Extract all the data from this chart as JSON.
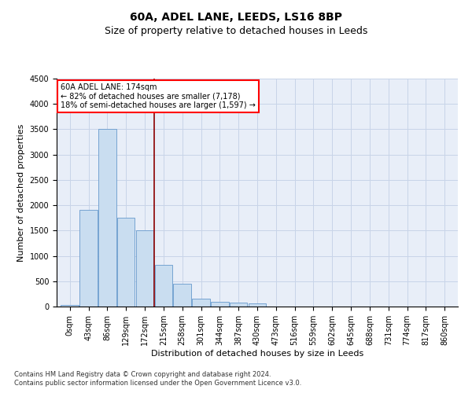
{
  "title": "60A, ADEL LANE, LEEDS, LS16 8BP",
  "subtitle": "Size of property relative to detached houses in Leeds",
  "xlabel": "Distribution of detached houses by size in Leeds",
  "ylabel": "Number of detached properties",
  "footnote1": "Contains HM Land Registry data © Crown copyright and database right 2024.",
  "footnote2": "Contains public sector information licensed under the Open Government Licence v3.0.",
  "annotation_line1": "60A ADEL LANE: 174sqm",
  "annotation_line2": "← 82% of detached houses are smaller (7,178)",
  "annotation_line3": "18% of semi-detached houses are larger (1,597) →",
  "bar_labels": [
    "0sqm",
    "43sqm",
    "86sqm",
    "129sqm",
    "172sqm",
    "215sqm",
    "258sqm",
    "301sqm",
    "344sqm",
    "387sqm",
    "430sqm",
    "473sqm",
    "516sqm",
    "559sqm",
    "602sqm",
    "645sqm",
    "688sqm",
    "731sqm",
    "774sqm",
    "817sqm",
    "860sqm"
  ],
  "bar_values": [
    30,
    1910,
    3500,
    1750,
    1500,
    830,
    450,
    155,
    100,
    75,
    60,
    0,
    0,
    0,
    0,
    0,
    0,
    0,
    0,
    0,
    0
  ],
  "bar_color": "#c9ddf0",
  "bar_edge_color": "#6699cc",
  "vline_color": "#8b0000",
  "vline_x_index": 4.5,
  "ylim": [
    0,
    4500
  ],
  "yticks": [
    0,
    500,
    1000,
    1500,
    2000,
    2500,
    3000,
    3500,
    4000,
    4500
  ],
  "grid_color": "#c8d4e8",
  "background_color": "#e8eef8",
  "annotation_box_facecolor": "white",
  "annotation_box_edgecolor": "red",
  "title_fontsize": 10,
  "subtitle_fontsize": 9,
  "tick_fontsize": 7,
  "label_fontsize": 8,
  "annotation_fontsize": 7,
  "footnote_fontsize": 6
}
